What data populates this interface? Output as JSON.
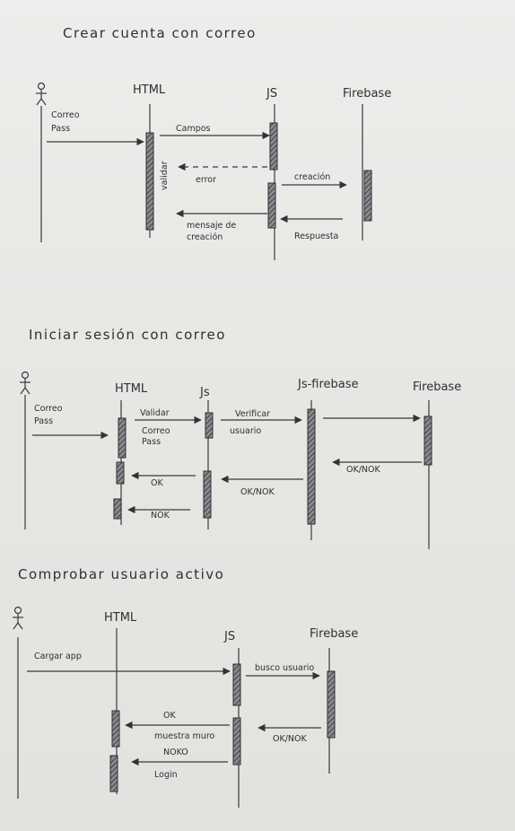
{
  "colors": {
    "ink": "#2f2f33",
    "paper": "#e9e9e7",
    "bar": "#7b7b80"
  },
  "sections": [
    {
      "id": "crear",
      "title": "Crear cuenta con correo",
      "actor_icon": "stick-figure-icon",
      "participants": [
        "HTML",
        "JS",
        "Firebase"
      ],
      "messages": [
        {
          "id": "correo-pass",
          "lines": [
            "Correo",
            "Pass"
          ]
        },
        {
          "id": "campos",
          "lines": [
            "Campos"
          ]
        },
        {
          "id": "validar",
          "lines": [
            "validar"
          ]
        },
        {
          "id": "error",
          "lines": [
            "error"
          ]
        },
        {
          "id": "creacion",
          "lines": [
            "creación"
          ]
        },
        {
          "id": "mensaje-creacion",
          "lines": [
            "mensaje de",
            "creación"
          ]
        },
        {
          "id": "respuesta",
          "lines": [
            "Respuesta"
          ]
        }
      ]
    },
    {
      "id": "iniciar",
      "title": "Iniciar sesión con correo",
      "actor_icon": "stick-figure-icon",
      "participants": [
        "HTML",
        "Js",
        "Js-firebase",
        "Firebase"
      ],
      "messages": [
        {
          "id": "correo-pass",
          "lines": [
            "Correo",
            "Pass"
          ]
        },
        {
          "id": "validar",
          "lines": [
            "Validar"
          ]
        },
        {
          "id": "correo-pass-2",
          "lines": [
            "Correo",
            "Pass"
          ]
        },
        {
          "id": "verificar",
          "lines": [
            "Verificar"
          ]
        },
        {
          "id": "usuario",
          "lines": [
            "usuario"
          ]
        },
        {
          "id": "ok-nok-1",
          "lines": [
            "OK/NOK"
          ]
        },
        {
          "id": "ok-nok-2",
          "lines": [
            "OK/NOK"
          ]
        },
        {
          "id": "ok",
          "lines": [
            "OK"
          ]
        },
        {
          "id": "nok",
          "lines": [
            "NOK"
          ]
        }
      ]
    },
    {
      "id": "comprobar",
      "title": "Comprobar usuario activo",
      "actor_icon": "stick-figure-icon",
      "participants": [
        "HTML",
        "JS",
        "Firebase"
      ],
      "messages": [
        {
          "id": "cargar-app",
          "lines": [
            "Cargar app"
          ]
        },
        {
          "id": "busco-usuario",
          "lines": [
            "busco usuario"
          ]
        },
        {
          "id": "ok-nok",
          "lines": [
            "OK/NOK"
          ]
        },
        {
          "id": "ok",
          "lines": [
            "OK"
          ]
        },
        {
          "id": "muestra-muro",
          "lines": [
            "muestra muro"
          ]
        },
        {
          "id": "nok",
          "lines": [
            "NOKO"
          ]
        },
        {
          "id": "login",
          "lines": [
            "Login"
          ]
        }
      ]
    }
  ]
}
